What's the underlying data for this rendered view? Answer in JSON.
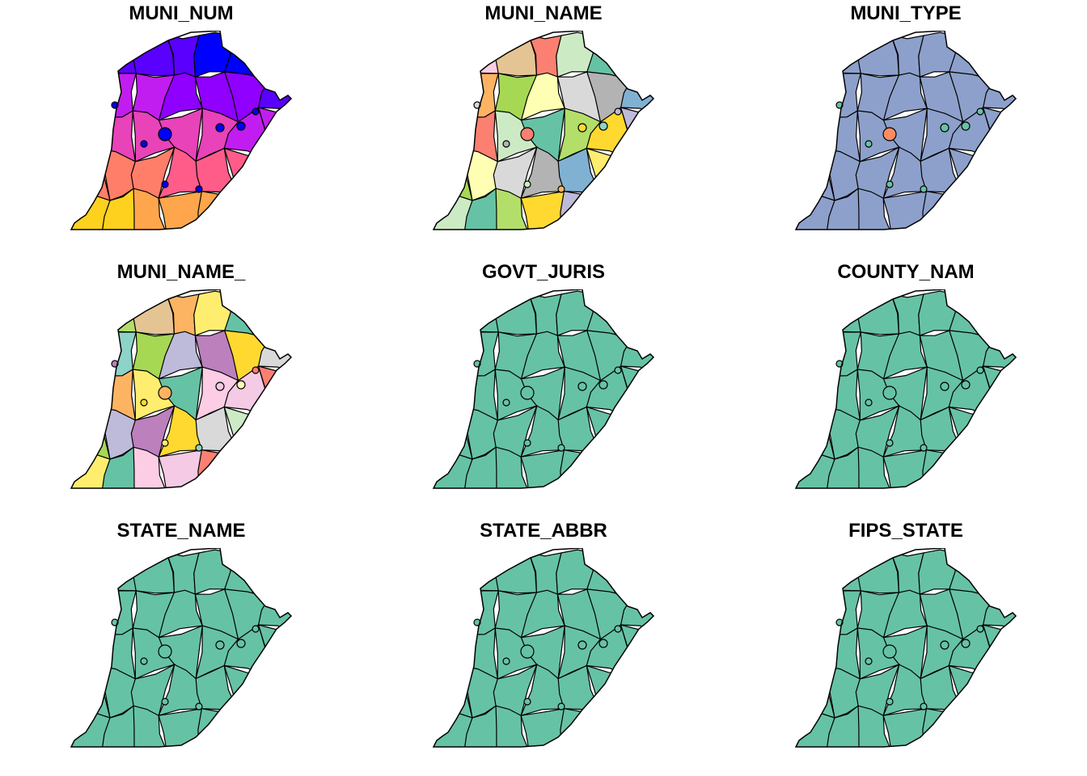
{
  "panels": [
    {
      "title": "MUNI_NUM",
      "fill": "gradient",
      "colors": [
        "#0000FF",
        "#5A00FF",
        "#8F00FF",
        "#C21DF0",
        "#E843B9",
        "#FF5C8A",
        "#FF7E6A",
        "#FFA64C",
        "#FFD11F",
        "#FFFF00"
      ]
    },
    {
      "title": "MUNI_NAME",
      "fill": "categorical",
      "colors": [
        "#8DD3C7",
        "#FFFFB3",
        "#BEBADA",
        "#FB8072",
        "#80B1D3",
        "#FDB462",
        "#B3DE69",
        "#FCCDE5",
        "#D9D9D9",
        "#BC80BD",
        "#CCEBC5",
        "#FFED6F",
        "#A6D854",
        "#FFD92F",
        "#E5C494",
        "#B3B3B3",
        "#F4CAE4",
        "#66C2A5"
      ]
    },
    {
      "title": "MUNI_TYPE",
      "fill": "types",
      "colors": [
        "#8DA0CB",
        "#66C2A5",
        "#FC8D62"
      ]
    },
    {
      "title": "MUNI_NAME_",
      "fill": "categorical",
      "colors": [
        "#FFFFB3",
        "#BEBADA",
        "#FB8072",
        "#FDB462",
        "#D9D9D9",
        "#8DD3C7",
        "#FCCDE5",
        "#B3DE69",
        "#BC80BD",
        "#80B1D3",
        "#FFED6F",
        "#CCEBC5",
        "#A6D854",
        "#F4CAE4",
        "#E5C494",
        "#FFD92F",
        "#B3B3B3",
        "#66C2A5"
      ]
    },
    {
      "title": "GOVT_JURIS",
      "fill": "single",
      "colors": [
        "#66C2A5"
      ]
    },
    {
      "title": "COUNTY_NAM",
      "fill": "single",
      "colors": [
        "#66C2A5"
      ]
    },
    {
      "title": "STATE_NAME",
      "fill": "single",
      "colors": [
        "#66C2A5"
      ]
    },
    {
      "title": "STATE_ABBR",
      "fill": "single",
      "colors": [
        "#66C2A5"
      ]
    },
    {
      "title": "FIPS_STATE",
      "fill": "single",
      "colors": [
        "#66C2A5"
      ]
    }
  ]
}
